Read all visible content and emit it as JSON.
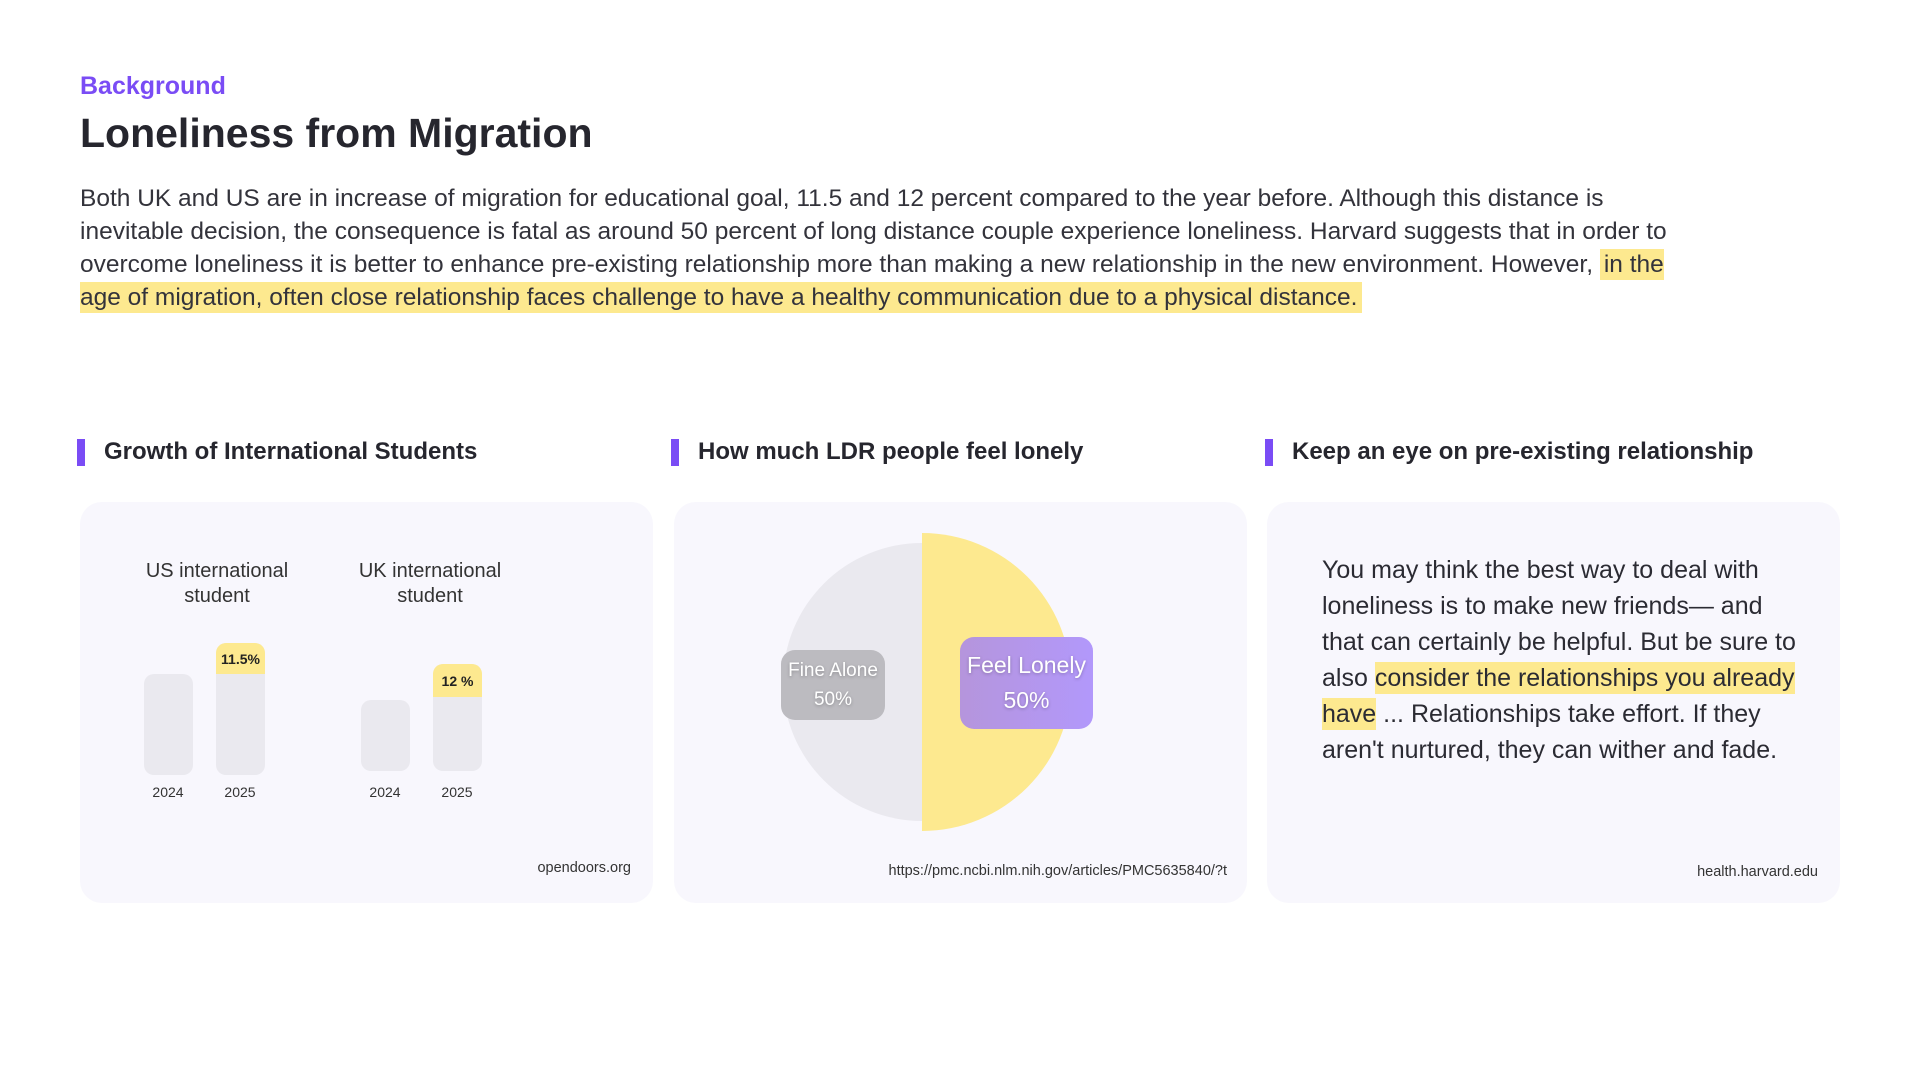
{
  "header": {
    "eyebrow": "Background",
    "title": "Loneliness from Migration",
    "intro_plain": "Both UK and US are in increase of migration for educational goal, 11.5 and 12 percent compared to the year before. Although this distance is inevitable decision, the consequence is fatal as around 50 percent of long distance couple experience loneliness. Harvard suggests that in order to overcome loneliness it is better  to enhance pre-existing relationship more than making a new relationship in the new environment. However,",
    "intro_highlight": "in the age of migration, often close relationship faces challenge to have a healthy communication due to a physical distance."
  },
  "colors": {
    "accent": "#7a4cf5",
    "highlight": "#fde98f",
    "bar_gray": "#eae9ef",
    "card_bg": "#f8f7fd",
    "lonely_label": "#b38ff0",
    "alone_label": "#bcbbc0"
  },
  "sections": [
    {
      "heading": "Growth of International Students",
      "source": "opendoors.org"
    },
    {
      "heading": "How much LDR people feel lonely",
      "source": "https://pmc.ncbi.nlm.nih.gov/articles/PMC5635840/?t"
    },
    {
      "heading": "Keep an eye on pre-existing relationship",
      "source": "health.harvard.edu",
      "text_before": "You may think the best way to deal with loneliness is to make new friends— and that can certainly be helpful. But be sure to also ",
      "text_highlight": "consider the relationships you already have",
      "text_after": " ... Relationships take effort. If they aren't nurtured, they can wither and fade."
    }
  ],
  "chart_data": [
    {
      "type": "bar",
      "groups": [
        {
          "title": "US international student",
          "categories": [
            "2024",
            "2025"
          ],
          "growth_label": "11.5%"
        },
        {
          "title": "UK international student",
          "categories": [
            "2024",
            "2025"
          ],
          "growth_label": "12 %"
        }
      ]
    },
    {
      "type": "pie",
      "slices": [
        {
          "name": "Fine Alone",
          "value": 50,
          "label": "50%"
        },
        {
          "name": "Feel Lonely",
          "value": 50,
          "label": "50%"
        }
      ]
    }
  ]
}
